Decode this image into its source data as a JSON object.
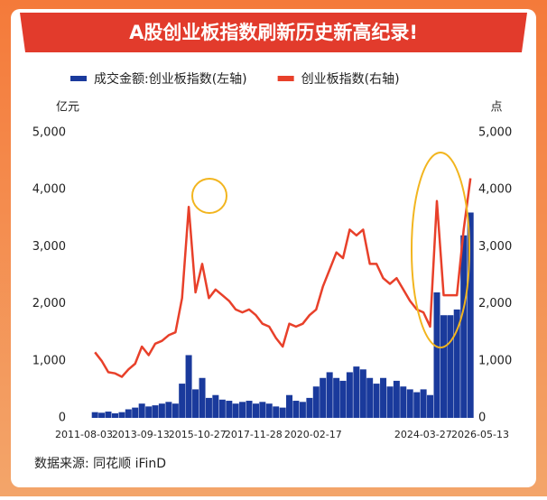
{
  "chart_data": {
    "type": "bar-line",
    "title": "A股创业板指数刷新历史新高纪录!",
    "y_label": "亿元",
    "y2_label": "点",
    "source": "数据来源: 同花顺 iFinD",
    "x": [
      "2011-12-31",
      "2012-03-31",
      "2012-06-30",
      "2012-09-30",
      "2012-12-31",
      "2013-03-31",
      "2013-06-30",
      "2013-09-30",
      "2013-12-31",
      "2014-03-31",
      "2014-06-30",
      "2014-09-30",
      "2014-12-31",
      "2015-03-31",
      "2015-06-30",
      "2015-09-30",
      "2015-12-31",
      "2016-03-31",
      "2016-06-30",
      "2016-09-30",
      "2016-12-31",
      "2017-03-31",
      "2017-06-30",
      "2017-09-30",
      "2017-12-31",
      "2018-03-31",
      "2018-06-30",
      "2018-09-30",
      "2018-12-31",
      "2019-03-31",
      "2019-06-30",
      "2019-09-30",
      "2019-12-31",
      "2020-03-31",
      "2020-06-30",
      "2020-09-30",
      "2020-12-31",
      "2021-03-31",
      "2021-06-30",
      "2021-09-30",
      "2021-12-31",
      "2022-03-31",
      "2022-06-30",
      "2022-09-30",
      "2022-12-31",
      "2023-03-31",
      "2023-06-30",
      "2023-09-30",
      "2023-12-31",
      "2024-03-31",
      "2024-06-30",
      "2024-09-30",
      "2024-12-31",
      "2025-03-31",
      "2025-06-30",
      "2025-09-30",
      "2025-12-31"
    ],
    "series": [
      {
        "name": "成交金额:创业板指数(左轴)",
        "color": "#1a3a9c",
        "kind": "bar",
        "values": [
          100,
          90,
          110,
          80,
          100,
          150,
          180,
          250,
          200,
          220,
          250,
          280,
          250,
          600,
          1100,
          500,
          700,
          350,
          400,
          320,
          300,
          250,
          280,
          300,
          250,
          280,
          250,
          200,
          180,
          400,
          300,
          280,
          350,
          550,
          700,
          800,
          700,
          650,
          800,
          900,
          850,
          700,
          600,
          700,
          550,
          650,
          550,
          500,
          450,
          500,
          400,
          2200,
          1800,
          1800,
          1900,
          3200,
          3600
        ]
      },
      {
        "name": "创业板指数(右轴)",
        "color": "#e8402a",
        "kind": "line",
        "axis": "y2",
        "values": [
          1150,
          1000,
          800,
          780,
          720,
          850,
          950,
          1250,
          1100,
          1300,
          1350,
          1450,
          1500,
          2100,
          3700,
          2200,
          2700,
          2100,
          2250,
          2150,
          2050,
          1900,
          1850,
          1900,
          1800,
          1650,
          1600,
          1400,
          1250,
          1650,
          1600,
          1650,
          1800,
          1900,
          2300,
          2600,
          2900,
          2800,
          3300,
          3200,
          3300,
          2700,
          2700,
          2450,
          2350,
          2450,
          2250,
          2050,
          1900,
          1850,
          1600,
          3800,
          2150,
          2150,
          2150,
          3300,
          4200
        ]
      }
    ],
    "xlim": [
      "2011-08-03",
      "2026-05-13"
    ],
    "xticks": [
      "2011-08-03",
      "2013-09-13",
      "2015-10-27",
      "2017-11-28",
      "2020-02-17",
      "2024-03-27",
      "2026-05-13"
    ],
    "ylim": [
      0,
      5000
    ],
    "yticks": [
      0,
      {
        "value": 1000,
        "label": "1,000"
      },
      {
        "value": 2000,
        "label": "2,000"
      },
      {
        "value": 3000,
        "label": "3,000"
      },
      {
        "value": 4000,
        "label": "4,000"
      },
      {
        "value": 5000,
        "label": "5,000"
      }
    ],
    "y2lim": [
      0,
      5000
    ],
    "y2ticks": [
      0,
      {
        "value": 1000,
        "label": "1,000"
      },
      {
        "value": 2000,
        "label": "2,000"
      },
      {
        "value": 3000,
        "label": "3,000"
      },
      {
        "value": 4000,
        "label": "4,000"
      },
      {
        "value": 5000,
        "label": "5,000"
      }
    ]
  }
}
